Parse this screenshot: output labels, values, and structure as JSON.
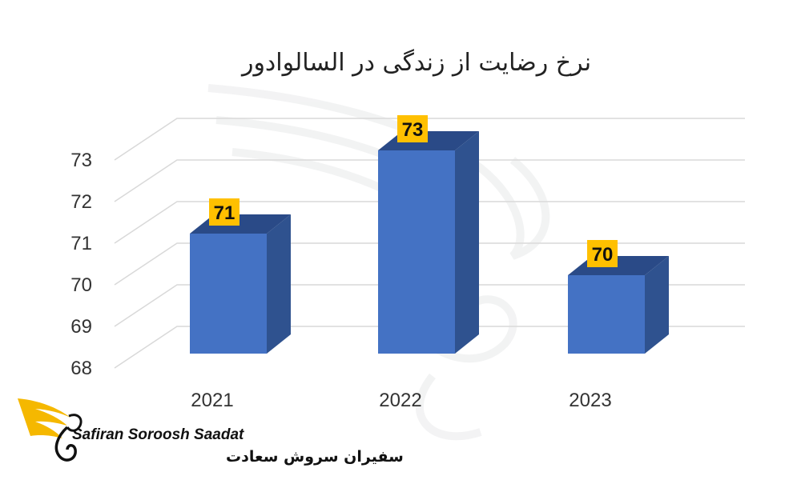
{
  "chart_data": {
    "type": "bar",
    "title": "نرخ رضایت از زندگی در السالوادور",
    "categories": [
      "2021",
      "2022",
      "2023"
    ],
    "values": [
      71,
      73,
      70
    ],
    "data_labels": [
      "71",
      "73",
      "70"
    ],
    "ylim": [
      68,
      73
    ],
    "yticks": [
      "68",
      "69",
      "70",
      "71",
      "72",
      "73"
    ],
    "grid": true,
    "legend": "none",
    "style": "3d",
    "colors": {
      "bar_front": "#4472c4",
      "bar_side": "#2f528f",
      "bar_top": "#2a4a87",
      "label_bg": "#ffc000",
      "grid": "#d9d9d9"
    }
  },
  "logo": {
    "name_en": "Safiran Soroosh Saadat",
    "name_fa": "سفیران سروش سعادت",
    "icon": "wing-logo-icon",
    "accent": "#f5b800"
  }
}
